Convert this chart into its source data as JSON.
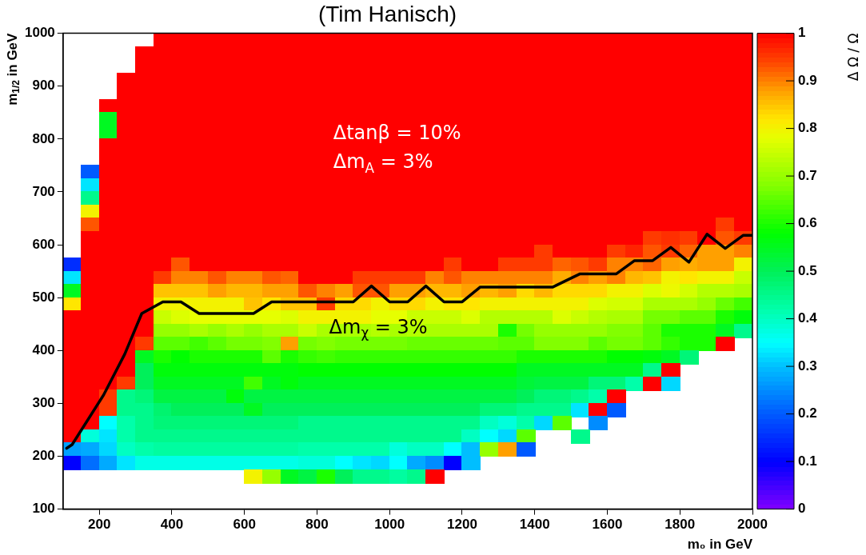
{
  "chart_data": {
    "type": "heatmap",
    "title": "(Tim Hanisch)",
    "xlabel": "m₀ in GeV",
    "ylabel": "m$_{1/2}$ in GeV",
    "clabel": "Δ Ω / Ω",
    "xlim": [
      100,
      2000
    ],
    "xticks": [
      200,
      400,
      600,
      800,
      1000,
      1200,
      1400,
      1600,
      1800,
      2000
    ],
    "ylim": [
      100,
      1000
    ],
    "yticks": [
      100,
      200,
      300,
      400,
      500,
      600,
      700,
      800,
      900,
      1000
    ],
    "clim": [
      0,
      1
    ],
    "cticks": [
      0,
      0.1,
      0.2,
      0.3,
      0.4,
      0.5,
      0.6,
      0.7,
      0.8,
      0.9,
      1
    ],
    "x": [
      125,
      175,
      225,
      275,
      325,
      375,
      425,
      475,
      525,
      575,
      625,
      675,
      725,
      775,
      825,
      875,
      925,
      975,
      1025,
      1075,
      1125,
      1175,
      1225,
      1275,
      1325,
      1375,
      1425,
      1475,
      1525,
      1575,
      1625,
      1675,
      1725,
      1775,
      1825,
      1875,
      1925,
      1975
    ],
    "y": [
      987.5,
      962.5,
      937.5,
      912.5,
      887.5,
      862.5,
      837.5,
      812.5,
      787.5,
      762.5,
      737.5,
      712.5,
      687.5,
      662.5,
      637.5,
      612.5,
      587.5,
      562.5,
      537.5,
      512.5,
      487.5,
      462.5,
      437.5,
      412.5,
      387.5,
      362.5,
      337.5,
      312.5,
      287.5,
      262.5,
      237.5,
      212.5,
      187.5,
      162.5
    ],
    "cells": [
      [
        null,
        null,
        null,
        null,
        null,
        1,
        1,
        1,
        1,
        1,
        1,
        1,
        1,
        1,
        1,
        1,
        1,
        1,
        1,
        1,
        1,
        1,
        1,
        1,
        1,
        1,
        1,
        1,
        1,
        1,
        1,
        1,
        1,
        1,
        1,
        1,
        1,
        1
      ],
      [
        null,
        null,
        null,
        null,
        1,
        1,
        1,
        1,
        1,
        1,
        1,
        1,
        1,
        1,
        1,
        1,
        1,
        1,
        1,
        1,
        1,
        1,
        1,
        1,
        1,
        1,
        1,
        1,
        1,
        1,
        1,
        1,
        1,
        1,
        1,
        1,
        1,
        1
      ],
      [
        null,
        null,
        null,
        null,
        1,
        1,
        1,
        1,
        1,
        1,
        1,
        1,
        1,
        1,
        1,
        1,
        1,
        1,
        1,
        1,
        1,
        1,
        1,
        1,
        1,
        1,
        1,
        1,
        1,
        1,
        1,
        1,
        1,
        1,
        1,
        1,
        1,
        1
      ],
      [
        null,
        null,
        null,
        1,
        1,
        1,
        1,
        1,
        1,
        1,
        1,
        1,
        1,
        1,
        1,
        1,
        1,
        1,
        1,
        1,
        1,
        1,
        1,
        1,
        1,
        1,
        1,
        1,
        1,
        1,
        1,
        1,
        1,
        1,
        1,
        1,
        1,
        1
      ],
      [
        null,
        null,
        null,
        1,
        1,
        1,
        1,
        1,
        1,
        1,
        1,
        1,
        1,
        1,
        1,
        1,
        1,
        1,
        1,
        1,
        1,
        1,
        1,
        1,
        1,
        1,
        1,
        1,
        1,
        1,
        1,
        1,
        1,
        1,
        1,
        1,
        1,
        1
      ],
      [
        null,
        null,
        1,
        1,
        1,
        1,
        1,
        1,
        1,
        1,
        1,
        1,
        1,
        1,
        1,
        1,
        1,
        1,
        1,
        1,
        1,
        1,
        1,
        1,
        1,
        1,
        1,
        1,
        1,
        1,
        1,
        1,
        1,
        1,
        1,
        1,
        1,
        1
      ],
      [
        null,
        null,
        0.55,
        1,
        1,
        1,
        1,
        1,
        1,
        1,
        1,
        1,
        1,
        1,
        1,
        1,
        1,
        1,
        1,
        1,
        1,
        1,
        1,
        1,
        1,
        1,
        1,
        1,
        1,
        1,
        1,
        1,
        1,
        1,
        1,
        1,
        1,
        1
      ],
      [
        null,
        null,
        0.55,
        1,
        1,
        1,
        1,
        1,
        1,
        1,
        1,
        1,
        1,
        1,
        1,
        1,
        1,
        1,
        1,
        1,
        1,
        1,
        1,
        1,
        1,
        1,
        1,
        1,
        1,
        1,
        1,
        1,
        1,
        1,
        1,
        1,
        1,
        1
      ],
      [
        null,
        null,
        1,
        1,
        1,
        1,
        1,
        1,
        1,
        1,
        1,
        1,
        1,
        1,
        1,
        1,
        1,
        1,
        1,
        1,
        1,
        1,
        1,
        1,
        1,
        1,
        1,
        1,
        1,
        1,
        1,
        1,
        1,
        1,
        1,
        1,
        1,
        1
      ],
      [
        null,
        null,
        1,
        1,
        1,
        1,
        1,
        1,
        1,
        1,
        1,
        1,
        1,
        1,
        1,
        1,
        1,
        1,
        1,
        1,
        1,
        1,
        1,
        1,
        1,
        1,
        1,
        1,
        1,
        1,
        1,
        1,
        1,
        1,
        1,
        1,
        1,
        1
      ],
      [
        null,
        0.2,
        1,
        1,
        1,
        1,
        1,
        1,
        1,
        1,
        1,
        1,
        1,
        1,
        1,
        1,
        1,
        1,
        1,
        1,
        1,
        1,
        1,
        1,
        1,
        1,
        1,
        1,
        1,
        1,
        1,
        1,
        1,
        1,
        1,
        1,
        1,
        1
      ],
      [
        null,
        0.33,
        1,
        1,
        1,
        1,
        1,
        1,
        1,
        1,
        1,
        1,
        1,
        1,
        1,
        1,
        1,
        1,
        1,
        1,
        1,
        1,
        1,
        1,
        1,
        1,
        1,
        1,
        1,
        1,
        1,
        1,
        1,
        1,
        1,
        1,
        1,
        1
      ],
      [
        null,
        0.45,
        1,
        1,
        1,
        1,
        1,
        1,
        1,
        1,
        1,
        1,
        1,
        1,
        1,
        1,
        1,
        1,
        1,
        1,
        1,
        1,
        1,
        1,
        1,
        1,
        1,
        1,
        1,
        1,
        1,
        1,
        1,
        1,
        1,
        1,
        1,
        1
      ],
      [
        null,
        0.8,
        1,
        1,
        1,
        1,
        1,
        1,
        1,
        1,
        1,
        1,
        1,
        1,
        1,
        1,
        1,
        1,
        1,
        1,
        1,
        1,
        1,
        1,
        1,
        1,
        1,
        1,
        1,
        1,
        1,
        1,
        1,
        1,
        1,
        1,
        1,
        1
      ],
      [
        null,
        0.93,
        1,
        1,
        1,
        1,
        1,
        1,
        1,
        1,
        1,
        1,
        1,
        1,
        1,
        1,
        1,
        1,
        1,
        1,
        1,
        1,
        1,
        1,
        1,
        1,
        1,
        1,
        1,
        1,
        1,
        1,
        1,
        1,
        1,
        1,
        0.95,
        1
      ],
      [
        null,
        1,
        1,
        1,
        1,
        1,
        1,
        1,
        1,
        1,
        1,
        1,
        1,
        1,
        1,
        1,
        1,
        1,
        1,
        1,
        1,
        1,
        1,
        1,
        1,
        1,
        1,
        1,
        1,
        1,
        1,
        1,
        0.95,
        0.96,
        0.95,
        1,
        0.93,
        0.95
      ],
      [
        null,
        1,
        1,
        1,
        1,
        1,
        1,
        1,
        1,
        1,
        1,
        1,
        1,
        1,
        1,
        1,
        1,
        1,
        1,
        1,
        1,
        1,
        1,
        1,
        1,
        1,
        0.95,
        1,
        1,
        1,
        0.95,
        0.97,
        0.93,
        0.95,
        0.92,
        0.88,
        0.88,
        0.9
      ],
      [
        0.15,
        1,
        1,
        1,
        1,
        1,
        0.93,
        1,
        1,
        1,
        1,
        1,
        1,
        1,
        1,
        1,
        1,
        1,
        1,
        1,
        1,
        0.95,
        1,
        1,
        0.95,
        0.95,
        0.95,
        0.92,
        0.93,
        0.95,
        0.9,
        0.9,
        0.92,
        0.88,
        0.87,
        0.88,
        0.88,
        0.8
      ],
      [
        0.33,
        1,
        1,
        1,
        1,
        0.95,
        0.9,
        0.9,
        0.93,
        0.9,
        0.9,
        0.93,
        0.92,
        1,
        1,
        1,
        0.95,
        0.95,
        0.95,
        0.95,
        0.9,
        0.93,
        0.9,
        0.9,
        0.9,
        0.9,
        0.9,
        0.87,
        0.9,
        0.88,
        0.9,
        0.86,
        0.85,
        0.8,
        0.82,
        0.8,
        0.8,
        0.75
      ],
      [
        0.55,
        1,
        1,
        1,
        1,
        0.85,
        0.85,
        0.85,
        0.88,
        0.86,
        0.86,
        0.88,
        0.88,
        0.93,
        0.9,
        0.88,
        0.93,
        0.93,
        0.88,
        0.88,
        0.86,
        0.86,
        0.88,
        0.86,
        0.88,
        0.83,
        0.86,
        0.83,
        0.83,
        0.83,
        0.8,
        0.8,
        0.77,
        0.79,
        0.76,
        0.73,
        0.73,
        0.72
      ],
      [
        0.82,
        1,
        1,
        1,
        1,
        0.8,
        0.8,
        0.8,
        0.8,
        0.8,
        0.85,
        0.82,
        0.85,
        0.85,
        0.95,
        0.83,
        0.83,
        0.8,
        0.83,
        0.83,
        0.8,
        0.82,
        0.82,
        0.8,
        0.8,
        0.8,
        0.8,
        0.8,
        0.8,
        0.77,
        0.76,
        0.76,
        0.72,
        0.72,
        0.72,
        0.7,
        0.66,
        0.63
      ],
      [
        1,
        1,
        1,
        1,
        1,
        0.75,
        0.77,
        0.78,
        0.78,
        0.78,
        0.78,
        0.78,
        0.77,
        0.8,
        0.8,
        0.8,
        0.8,
        0.78,
        0.78,
        0.75,
        0.75,
        0.75,
        0.77,
        0.73,
        0.73,
        0.73,
        0.73,
        0.77,
        0.75,
        0.73,
        0.72,
        0.72,
        0.67,
        0.67,
        0.65,
        0.65,
        0.6,
        0.57
      ],
      [
        1,
        1,
        1,
        1,
        1,
        0.7,
        0.7,
        0.72,
        0.7,
        0.72,
        0.7,
        0.72,
        0.72,
        0.75,
        0.72,
        0.72,
        0.72,
        0.73,
        0.72,
        0.73,
        0.72,
        0.72,
        0.72,
        0.72,
        0.6,
        0.67,
        0.7,
        0.7,
        0.7,
        0.7,
        0.68,
        0.68,
        0.65,
        0.6,
        0.6,
        0.6,
        0.55,
        0.45
      ],
      [
        1,
        1,
        1,
        1,
        0.95,
        0.65,
        0.65,
        0.63,
        0.65,
        0.67,
        0.67,
        0.68,
        0.88,
        0.67,
        0.68,
        0.67,
        0.67,
        0.67,
        0.67,
        0.66,
        0.66,
        0.66,
        0.66,
        0.66,
        0.65,
        0.65,
        0.68,
        0.68,
        0.68,
        0.65,
        0.67,
        0.67,
        0.65,
        0.62,
        0.6,
        0.6,
        1,
        null
      ],
      [
        1,
        1,
        1,
        1,
        0.55,
        0.6,
        0.58,
        0.6,
        0.6,
        0.6,
        0.6,
        0.65,
        0.6,
        0.62,
        0.63,
        0.62,
        0.62,
        0.62,
        0.62,
        0.62,
        0.62,
        0.62,
        0.62,
        0.62,
        0.62,
        0.6,
        0.6,
        0.6,
        0.6,
        0.6,
        0.58,
        0.58,
        0.57,
        0.55,
        0.47,
        null,
        null,
        null
      ],
      [
        1,
        1,
        1,
        1,
        0.5,
        0.57,
        0.57,
        0.57,
        0.57,
        0.57,
        0.57,
        0.57,
        0.57,
        0.58,
        0.58,
        0.58,
        0.58,
        0.58,
        0.58,
        0.58,
        0.58,
        0.58,
        0.58,
        0.58,
        0.58,
        0.55,
        0.55,
        0.55,
        0.55,
        0.55,
        0.55,
        0.55,
        0.45,
        1,
        null,
        null,
        null,
        null
      ],
      [
        1,
        1,
        1,
        0.95,
        0.5,
        0.55,
        0.55,
        0.55,
        0.55,
        0.55,
        0.63,
        0.55,
        0.57,
        0.55,
        0.55,
        0.55,
        0.55,
        0.55,
        0.55,
        0.55,
        0.55,
        0.55,
        0.55,
        0.55,
        0.55,
        0.53,
        0.52,
        0.52,
        0.52,
        0.47,
        0.47,
        0.42,
        1,
        0.32,
        null,
        null,
        null,
        null
      ],
      [
        1,
        1,
        0.95,
        0.45,
        0.47,
        0.52,
        0.52,
        0.52,
        0.52,
        0.57,
        0.52,
        0.52,
        0.52,
        0.52,
        0.52,
        0.52,
        0.52,
        0.52,
        0.52,
        0.52,
        0.52,
        0.52,
        0.52,
        0.52,
        0.52,
        0.5,
        0.47,
        0.47,
        0.45,
        0.42,
        1,
        null,
        null,
        null,
        null,
        null,
        null,
        null
      ],
      [
        1,
        1,
        0.95,
        0.45,
        0.45,
        0.48,
        0.5,
        0.5,
        0.5,
        0.5,
        0.55,
        0.5,
        0.5,
        0.5,
        0.5,
        0.5,
        0.5,
        0.5,
        0.5,
        0.5,
        0.5,
        0.5,
        0.5,
        0.47,
        0.47,
        0.45,
        0.45,
        0.45,
        0.33,
        1,
        0.2,
        null,
        null,
        null,
        null,
        null,
        null,
        null
      ],
      [
        1,
        1,
        0.35,
        0.42,
        0.45,
        0.47,
        0.47,
        0.47,
        0.47,
        0.47,
        0.47,
        0.47,
        0.47,
        0.45,
        0.45,
        0.45,
        0.45,
        0.45,
        0.45,
        0.45,
        0.45,
        0.45,
        0.45,
        0.4,
        0.38,
        0.42,
        0.32,
        0.65,
        null,
        0.25,
        null,
        null,
        null,
        null,
        null,
        null,
        null,
        null
      ],
      [
        1,
        0.38,
        0.33,
        0.42,
        0.45,
        0.45,
        0.45,
        0.45,
        0.45,
        0.45,
        0.45,
        0.45,
        0.45,
        0.45,
        0.45,
        0.45,
        0.45,
        0.45,
        0.45,
        0.45,
        0.45,
        0.45,
        0.4,
        0.35,
        0.32,
        0.65,
        null,
        null,
        0.45,
        null,
        null,
        null,
        null,
        null,
        null,
        null,
        null,
        null
      ],
      [
        0.27,
        0.28,
        0.32,
        0.4,
        0.42,
        0.43,
        0.43,
        0.43,
        0.43,
        0.43,
        0.43,
        0.43,
        0.43,
        0.42,
        0.42,
        0.42,
        0.42,
        0.42,
        0.38,
        0.4,
        0.4,
        0.35,
        0.3,
        0.7,
        0.88,
        0.2,
        null,
        null,
        null,
        null,
        null,
        null,
        null,
        null,
        null,
        null,
        null,
        null
      ],
      [
        0.1,
        0.22,
        0.28,
        0.33,
        0.37,
        0.37,
        0.37,
        0.37,
        0.37,
        0.37,
        0.37,
        0.37,
        0.37,
        0.38,
        0.38,
        0.35,
        0.33,
        0.32,
        0.35,
        0.28,
        0.25,
        0.1,
        0.3,
        null,
        null,
        null,
        null,
        null,
        null,
        null,
        null,
        null,
        null,
        null,
        null,
        null,
        null,
        null
      ],
      [
        null,
        null,
        null,
        null,
        null,
        null,
        null,
        null,
        null,
        null,
        0.8,
        0.7,
        0.55,
        0.52,
        0.6,
        0.5,
        0.45,
        0.45,
        0.43,
        0.45,
        1,
        null,
        null,
        null,
        null,
        null,
        null,
        null,
        null,
        null,
        null,
        null,
        null,
        null,
        null,
        null,
        null,
        null
      ]
    ],
    "series": [
      {
        "type": "line",
        "color": "#000000",
        "x": [
          110,
          125,
          212,
          270,
          317,
          375,
          425,
          475,
          625,
          675,
          900,
          950,
          1000,
          1050,
          1100,
          1150,
          1200,
          1250,
          1450,
          1525,
          1625,
          1675,
          1725,
          1775,
          1825,
          1875,
          1925,
          1975,
          2000
        ],
        "values": [
          215,
          222,
          316,
          393,
          470,
          492,
          492,
          470,
          470,
          492,
          492,
          522,
          492,
          492,
          522,
          492,
          492,
          520,
          520,
          545,
          545,
          570,
          570,
          595,
          567,
          620,
          593,
          618,
          618
        ]
      }
    ],
    "annotations": [
      "Δtanβ = 10%",
      "Δm$_{A}$ = 3%",
      "Δm$_{χ}$ = 3%"
    ]
  }
}
